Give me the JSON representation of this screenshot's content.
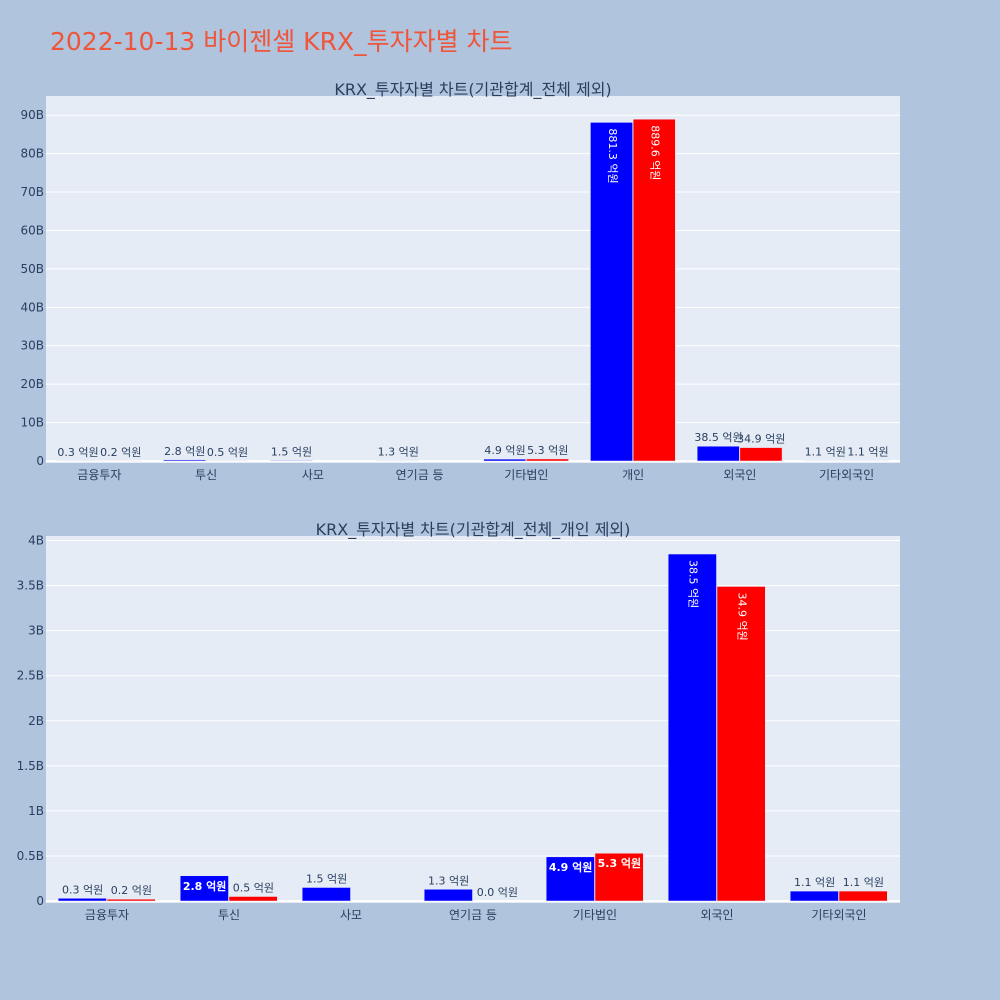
{
  "page_title": "2022-10-13 바이젠셀 KRX_투자자별 차트",
  "colors": {
    "page_bg": "#b0c4de",
    "plot_bg": "#e5ecf6",
    "title": "#ef553b",
    "text": "#2a3f5f",
    "series1": "#0000ff",
    "series2": "#ff0000"
  },
  "chart_data": [
    {
      "type": "bar",
      "title": "KRX_투자자별 차트(기관합계_전체 제외)",
      "categories": [
        "금융투자",
        "투신",
        "사모",
        "연기금 등",
        "기타법인",
        "개인",
        "외국인",
        "기타외국인"
      ],
      "y_tick_labels": [
        "0",
        "10B",
        "20B",
        "30B",
        "40B",
        "50B",
        "60B",
        "70B",
        "80B",
        "90B"
      ],
      "ylim": [
        0,
        95000000000
      ],
      "series": [
        {
          "values": [
            30000000,
            280000000,
            150000000,
            130000000,
            490000000,
            88130000000,
            3850000000,
            110000000
          ],
          "labels": [
            "0.3 억원",
            "2.8 억원",
            "1.5 억원",
            "1.3 억원",
            "4.9 억원",
            "881.3 억원",
            "38.5 억원",
            "1.1 억원"
          ]
        },
        {
          "values": [
            20000000,
            50000000,
            null,
            null,
            530000000,
            88960000000,
            3490000000,
            110000000
          ],
          "labels": [
            "0.2 억원",
            "0.5 억원",
            "",
            "",
            "5.3 억원",
            "889.6 억원",
            "34.9 억원",
            "1.1 억원"
          ]
        }
      ]
    },
    {
      "type": "bar",
      "title": "KRX_투자자별 차트(기관합계_전체_개인 제외)",
      "categories": [
        "금융투자",
        "투신",
        "사모",
        "연기금 등",
        "기타법인",
        "외국인",
        "기타외국인"
      ],
      "y_tick_labels": [
        "0",
        "0.5B",
        "1B",
        "1.5B",
        "2B",
        "2.5B",
        "3B",
        "3.5B",
        "4B"
      ],
      "ylim": [
        0,
        4050000000
      ],
      "series": [
        {
          "values": [
            30000000,
            280000000,
            150000000,
            130000000,
            490000000,
            3850000000,
            110000000
          ],
          "labels": [
            "0.3 억원",
            "2.8 억원",
            "1.5 억원",
            "1.3 억원",
            "4.9 억원",
            "38.5 억원",
            "1.1 억원"
          ]
        },
        {
          "values": [
            20000000,
            50000000,
            null,
            0,
            530000000,
            3490000000,
            110000000
          ],
          "labels": [
            "0.2 억원",
            "0.5 억원",
            "",
            "0.0 억원",
            "5.3 억원",
            "34.9 억원",
            "1.1 억원"
          ]
        }
      ]
    }
  ]
}
